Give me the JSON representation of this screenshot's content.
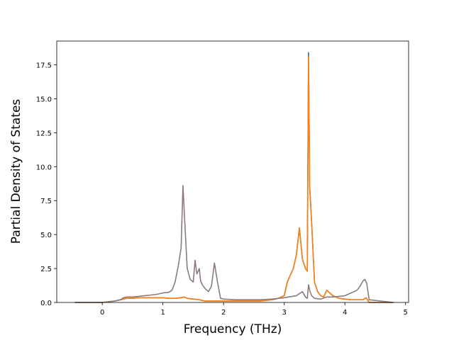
{
  "chart_data": {
    "type": "line",
    "title": "",
    "xlabel": "Frequency (THz)",
    "ylabel": "Partial Density of States",
    "xlim": [
      -0.75,
      5.05
    ],
    "ylim": [
      0,
      19.25
    ],
    "xticks": [
      0,
      1,
      2,
      3,
      4,
      5
    ],
    "xtick_labels": [
      "0",
      "1",
      "2",
      "3",
      "4",
      "5"
    ],
    "yticks": [
      0,
      2.5,
      5,
      7.5,
      10,
      12.5,
      15,
      17.5
    ],
    "ytick_labels": [
      "0.0",
      "2.5",
      "5.0",
      "7.5",
      "10.0",
      "12.5",
      "15.0",
      "17.5"
    ],
    "grid": false,
    "legend": false,
    "series": [
      {
        "color": "#1f77b4",
        "x": [
          -0.45,
          0.0,
          0.1,
          0.2,
          0.3,
          0.35,
          0.4,
          0.5,
          0.6,
          0.7,
          0.8,
          0.9,
          1.0,
          1.1,
          1.2,
          1.3,
          1.35,
          1.4,
          1.5,
          1.6,
          1.7,
          1.8,
          1.9,
          2.0,
          2.2,
          2.4,
          2.6,
          2.8,
          2.9,
          3.0,
          3.05,
          3.1,
          3.15,
          3.2,
          3.25,
          3.3,
          3.35,
          3.38,
          3.4,
          3.42,
          3.45,
          3.5,
          3.55,
          3.6,
          3.65,
          3.7,
          3.8,
          3.9,
          4.0,
          4.1,
          4.2,
          4.3,
          4.35,
          4.4,
          4.8
        ],
        "y": [
          0,
          0,
          0.05,
          0.1,
          0.2,
          0.25,
          0.3,
          0.3,
          0.35,
          0.35,
          0.35,
          0.35,
          0.35,
          0.3,
          0.3,
          0.35,
          0.4,
          0.3,
          0.25,
          0.2,
          0.1,
          0.1,
          0.1,
          0.1,
          0.1,
          0.1,
          0.1,
          0.2,
          0.3,
          0.5,
          1.5,
          2.0,
          2.5,
          3.5,
          5.5,
          3.2,
          2.5,
          2.3,
          18.4,
          8.5,
          6.0,
          1.5,
          0.8,
          0.5,
          0.4,
          0.9,
          0.5,
          0.3,
          0.25,
          0.2,
          0.2,
          0.2,
          0.35,
          0,
          0
        ]
      },
      {
        "color": "#ff7f0e",
        "x": [
          -0.45,
          0.0,
          0.1,
          0.2,
          0.3,
          0.35,
          0.4,
          0.5,
          0.6,
          0.7,
          0.8,
          0.9,
          1.0,
          1.1,
          1.2,
          1.3,
          1.35,
          1.4,
          1.5,
          1.6,
          1.7,
          1.8,
          1.9,
          2.0,
          2.2,
          2.4,
          2.6,
          2.8,
          2.9,
          3.0,
          3.05,
          3.1,
          3.15,
          3.2,
          3.25,
          3.3,
          3.35,
          3.38,
          3.4,
          3.42,
          3.45,
          3.5,
          3.55,
          3.6,
          3.65,
          3.7,
          3.8,
          3.9,
          4.0,
          4.1,
          4.2,
          4.3,
          4.35,
          4.4,
          4.8
        ],
        "y": [
          0,
          0,
          0.05,
          0.1,
          0.2,
          0.25,
          0.3,
          0.3,
          0.35,
          0.35,
          0.35,
          0.35,
          0.35,
          0.3,
          0.3,
          0.35,
          0.4,
          0.3,
          0.25,
          0.2,
          0.1,
          0.1,
          0.1,
          0.1,
          0.1,
          0.1,
          0.1,
          0.2,
          0.3,
          0.5,
          1.5,
          2.0,
          2.5,
          3.5,
          5.5,
          3.2,
          2.5,
          2.3,
          18.1,
          8.5,
          6.0,
          1.5,
          0.8,
          0.5,
          0.4,
          0.9,
          0.5,
          0.3,
          0.25,
          0.2,
          0.2,
          0.2,
          0.35,
          0,
          0
        ]
      },
      {
        "color": "#8c7b7b",
        "x": [
          -0.45,
          0.0,
          0.1,
          0.2,
          0.3,
          0.35,
          0.4,
          0.5,
          0.6,
          0.7,
          0.8,
          0.9,
          1.0,
          1.1,
          1.15,
          1.2,
          1.25,
          1.3,
          1.33,
          1.36,
          1.4,
          1.45,
          1.5,
          1.53,
          1.56,
          1.6,
          1.62,
          1.65,
          1.7,
          1.75,
          1.8,
          1.85,
          1.9,
          1.95,
          2.0,
          2.2,
          2.4,
          2.6,
          2.8,
          3.0,
          3.2,
          3.3,
          3.35,
          3.38,
          3.4,
          3.42,
          3.45,
          3.5,
          3.6,
          3.7,
          3.8,
          3.9,
          4.0,
          4.1,
          4.2,
          4.25,
          4.3,
          4.33,
          4.36,
          4.4,
          4.8
        ],
        "y": [
          0,
          0,
          0.05,
          0.1,
          0.2,
          0.35,
          0.4,
          0.4,
          0.45,
          0.5,
          0.55,
          0.6,
          0.7,
          0.75,
          0.9,
          1.5,
          2.6,
          4.0,
          8.6,
          6.0,
          2.5,
          1.7,
          1.5,
          3.1,
          2.1,
          2.5,
          1.6,
          1.3,
          1.0,
          0.8,
          1.2,
          2.9,
          1.5,
          0.3,
          0.25,
          0.2,
          0.2,
          0.2,
          0.25,
          0.35,
          0.5,
          0.8,
          0.4,
          0.3,
          1.3,
          0.9,
          0.5,
          0.3,
          0.25,
          0.4,
          0.4,
          0.45,
          0.5,
          0.7,
          0.9,
          1.2,
          1.6,
          1.7,
          1.4,
          0.2,
          0
        ]
      }
    ]
  }
}
